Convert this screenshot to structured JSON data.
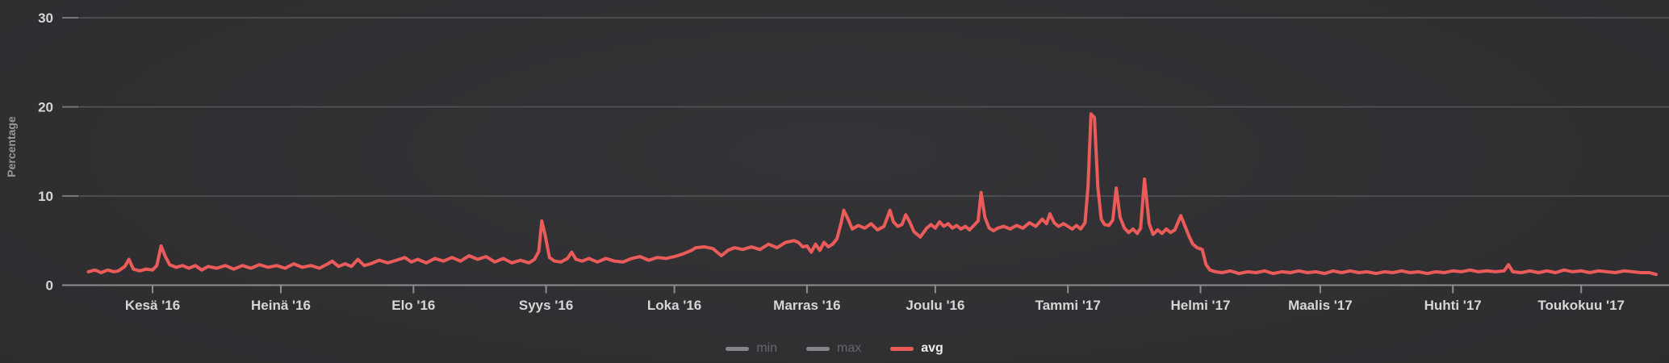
{
  "chart_data": {
    "type": "line",
    "title": "",
    "xlabel": "",
    "ylabel": "Percentage",
    "ylim": [
      0,
      32
    ],
    "grid": true,
    "legend_position": "bottom-center",
    "y_ticks": [
      {
        "value": 0,
        "label": "0"
      },
      {
        "value": 10,
        "label": "10"
      },
      {
        "value": 20,
        "label": "20"
      },
      {
        "value": 30,
        "label": "30"
      }
    ],
    "x_unit": "days since 2016-06-01",
    "x_ticks": [
      {
        "label": "Kesä '16",
        "day": 0
      },
      {
        "label": "Heinä '16",
        "day": 30
      },
      {
        "label": "Elo '16",
        "day": 61
      },
      {
        "label": "Syys '16",
        "day": 92
      },
      {
        "label": "Loka '16",
        "day": 122
      },
      {
        "label": "Marras '16",
        "day": 153
      },
      {
        "label": "Joulu '16",
        "day": 183
      },
      {
        "label": "Tammi '17",
        "day": 214
      },
      {
        "label": "Helmi '17",
        "day": 245
      },
      {
        "label": "Maalis '17",
        "day": 273
      },
      {
        "label": "Huhti '17",
        "day": 304
      },
      {
        "label": "Toukokuu '17",
        "day": 334
      }
    ],
    "legend": [
      {
        "label": "min",
        "swatch_color": "#85868a",
        "text_color": "#63666b",
        "active": false
      },
      {
        "label": "max",
        "swatch_color": "#85868a",
        "text_color": "#63666b",
        "active": false
      },
      {
        "label": "avg",
        "swatch_color": "#ea5b59",
        "text_color": "#ededee",
        "active": true
      }
    ],
    "series": [
      {
        "name": "avg",
        "color": "#ea5b59",
        "points": [
          [
            -15,
            1.5
          ],
          [
            -13.5,
            1.7
          ],
          [
            -12,
            1.4
          ],
          [
            -10.5,
            1.7
          ],
          [
            -9,
            1.5
          ],
          [
            -8,
            1.6
          ],
          [
            -6.5,
            2.1
          ],
          [
            -5.5,
            2.9
          ],
          [
            -4.5,
            1.8
          ],
          [
            -3,
            1.6
          ],
          [
            -1.5,
            1.8
          ],
          [
            0,
            1.7
          ],
          [
            1,
            2.2
          ],
          [
            2,
            4.4
          ],
          [
            3,
            3.2
          ],
          [
            4,
            2.3
          ],
          [
            5.5,
            2.0
          ],
          [
            7,
            2.2
          ],
          [
            8.5,
            1.9
          ],
          [
            10,
            2.2
          ],
          [
            11.5,
            1.7
          ],
          [
            13,
            2.1
          ],
          [
            15,
            1.9
          ],
          [
            17,
            2.2
          ],
          [
            19,
            1.8
          ],
          [
            21,
            2.2
          ],
          [
            23,
            1.9
          ],
          [
            25,
            2.3
          ],
          [
            27,
            2.0
          ],
          [
            29,
            2.2
          ],
          [
            31,
            1.9
          ],
          [
            33,
            2.4
          ],
          [
            35,
            2.0
          ],
          [
            37,
            2.2
          ],
          [
            39,
            1.9
          ],
          [
            41,
            2.4
          ],
          [
            42,
            2.7
          ],
          [
            43.5,
            2.1
          ],
          [
            45,
            2.4
          ],
          [
            46.5,
            2.1
          ],
          [
            48,
            2.9
          ],
          [
            49.5,
            2.2
          ],
          [
            51,
            2.4
          ],
          [
            53,
            2.8
          ],
          [
            55,
            2.5
          ],
          [
            57,
            2.8
          ],
          [
            59,
            3.1
          ],
          [
            60.5,
            2.6
          ],
          [
            62,
            2.9
          ],
          [
            64,
            2.5
          ],
          [
            66,
            3.0
          ],
          [
            68,
            2.7
          ],
          [
            70,
            3.1
          ],
          [
            72,
            2.7
          ],
          [
            74,
            3.3
          ],
          [
            76,
            2.9
          ],
          [
            78,
            3.2
          ],
          [
            80,
            2.6
          ],
          [
            82,
            3.0
          ],
          [
            84,
            2.5
          ],
          [
            86,
            2.8
          ],
          [
            88,
            2.5
          ],
          [
            89.3,
            2.9
          ],
          [
            90.3,
            3.8
          ],
          [
            91,
            7.2
          ],
          [
            91.8,
            5.6
          ],
          [
            92.8,
            3.1
          ],
          [
            94,
            2.7
          ],
          [
            95.5,
            2.6
          ],
          [
            97,
            3.0
          ],
          [
            98,
            3.7
          ],
          [
            99,
            2.9
          ],
          [
            100.5,
            2.7
          ],
          [
            102,
            3.0
          ],
          [
            104,
            2.6
          ],
          [
            106,
            3.0
          ],
          [
            108,
            2.7
          ],
          [
            110,
            2.6
          ],
          [
            112,
            3.0
          ],
          [
            114,
            3.2
          ],
          [
            116,
            2.8
          ],
          [
            118,
            3.1
          ],
          [
            120,
            3.0
          ],
          [
            122,
            3.2
          ],
          [
            124,
            3.5
          ],
          [
            126,
            3.9
          ],
          [
            127,
            4.2
          ],
          [
            129,
            4.3
          ],
          [
            131,
            4.1
          ],
          [
            133,
            3.3
          ],
          [
            134.5,
            3.9
          ],
          [
            136,
            4.2
          ],
          [
            138,
            4.0
          ],
          [
            140,
            4.3
          ],
          [
            142,
            4.0
          ],
          [
            144,
            4.6
          ],
          [
            146,
            4.2
          ],
          [
            148,
            4.8
          ],
          [
            150,
            5.0
          ],
          [
            151,
            4.8
          ],
          [
            152,
            4.3
          ],
          [
            153,
            4.4
          ],
          [
            154,
            3.7
          ],
          [
            155,
            4.6
          ],
          [
            156,
            3.9
          ],
          [
            157,
            4.8
          ],
          [
            158,
            4.3
          ],
          [
            159,
            4.6
          ],
          [
            160,
            5.2
          ],
          [
            161,
            7.0
          ],
          [
            161.6,
            8.4
          ],
          [
            162.6,
            7.4
          ],
          [
            163.6,
            6.3
          ],
          [
            165,
            6.7
          ],
          [
            166.5,
            6.4
          ],
          [
            168,
            6.9
          ],
          [
            169.5,
            6.2
          ],
          [
            171,
            6.6
          ],
          [
            171.8,
            7.6
          ],
          [
            172.4,
            8.4
          ],
          [
            173.2,
            7.1
          ],
          [
            174.2,
            6.6
          ],
          [
            175.2,
            6.8
          ],
          [
            176.1,
            7.9
          ],
          [
            177,
            7.1
          ],
          [
            178,
            6.0
          ],
          [
            179.5,
            5.4
          ],
          [
            181,
            6.4
          ],
          [
            182,
            6.8
          ],
          [
            183,
            6.4
          ],
          [
            184,
            7.1
          ],
          [
            185,
            6.6
          ],
          [
            186,
            6.9
          ],
          [
            187,
            6.4
          ],
          [
            188,
            6.7
          ],
          [
            189,
            6.3
          ],
          [
            190,
            6.6
          ],
          [
            191,
            6.2
          ],
          [
            192,
            6.7
          ],
          [
            193,
            7.2
          ],
          [
            193.7,
            10.4
          ],
          [
            194.6,
            7.6
          ],
          [
            195.6,
            6.4
          ],
          [
            196.6,
            6.1
          ],
          [
            197.6,
            6.4
          ],
          [
            199,
            6.6
          ],
          [
            200.5,
            6.3
          ],
          [
            202,
            6.7
          ],
          [
            203.5,
            6.4
          ],
          [
            205,
            7.0
          ],
          [
            206.5,
            6.6
          ],
          [
            208,
            7.4
          ],
          [
            209,
            6.9
          ],
          [
            209.8,
            8.0
          ],
          [
            210.8,
            7.0
          ],
          [
            211.8,
            6.6
          ],
          [
            213,
            6.9
          ],
          [
            214,
            6.6
          ],
          [
            215,
            6.3
          ],
          [
            216,
            6.7
          ],
          [
            217,
            6.3
          ],
          [
            218,
            7.0
          ],
          [
            218.7,
            11.0
          ],
          [
            219.4,
            19.2
          ],
          [
            220.2,
            18.8
          ],
          [
            221,
            11.0
          ],
          [
            221.8,
            7.4
          ],
          [
            222.6,
            6.8
          ],
          [
            223.6,
            6.7
          ],
          [
            224.5,
            7.3
          ],
          [
            225.3,
            10.9
          ],
          [
            226.2,
            7.6
          ],
          [
            227.2,
            6.4
          ],
          [
            228.2,
            5.9
          ],
          [
            229.2,
            6.3
          ],
          [
            230.2,
            5.8
          ],
          [
            231,
            6.4
          ],
          [
            231.9,
            11.9
          ],
          [
            233,
            6.9
          ],
          [
            233.9,
            5.7
          ],
          [
            235,
            6.2
          ],
          [
            236,
            5.8
          ],
          [
            237,
            6.3
          ],
          [
            238,
            5.9
          ],
          [
            239,
            6.2
          ],
          [
            240.4,
            7.8
          ],
          [
            241.4,
            6.6
          ],
          [
            242.3,
            5.5
          ],
          [
            243.2,
            4.6
          ],
          [
            244.2,
            4.2
          ],
          [
            245.4,
            4.0
          ],
          [
            246.3,
            2.3
          ],
          [
            247.2,
            1.7
          ],
          [
            248.5,
            1.5
          ],
          [
            250,
            1.4
          ],
          [
            252,
            1.6
          ],
          [
            254,
            1.3
          ],
          [
            256,
            1.5
          ],
          [
            258,
            1.4
          ],
          [
            260,
            1.6
          ],
          [
            262,
            1.3
          ],
          [
            264,
            1.5
          ],
          [
            266,
            1.4
          ],
          [
            268,
            1.6
          ],
          [
            270,
            1.4
          ],
          [
            272,
            1.5
          ],
          [
            274,
            1.3
          ],
          [
            276,
            1.6
          ],
          [
            278,
            1.4
          ],
          [
            280,
            1.6
          ],
          [
            282,
            1.4
          ],
          [
            284,
            1.5
          ],
          [
            286,
            1.3
          ],
          [
            288,
            1.5
          ],
          [
            290,
            1.4
          ],
          [
            292,
            1.6
          ],
          [
            294,
            1.4
          ],
          [
            296,
            1.5
          ],
          [
            298,
            1.3
          ],
          [
            300,
            1.5
          ],
          [
            302,
            1.4
          ],
          [
            304,
            1.6
          ],
          [
            306,
            1.5
          ],
          [
            308,
            1.7
          ],
          [
            310,
            1.5
          ],
          [
            312,
            1.6
          ],
          [
            314,
            1.5
          ],
          [
            316,
            1.6
          ],
          [
            317,
            2.3
          ],
          [
            318,
            1.5
          ],
          [
            320,
            1.4
          ],
          [
            322,
            1.6
          ],
          [
            324,
            1.4
          ],
          [
            326,
            1.6
          ],
          [
            328,
            1.4
          ],
          [
            330,
            1.7
          ],
          [
            332,
            1.5
          ],
          [
            334,
            1.6
          ],
          [
            336,
            1.4
          ],
          [
            338,
            1.6
          ],
          [
            340,
            1.5
          ],
          [
            342,
            1.4
          ],
          [
            344,
            1.6
          ],
          [
            346,
            1.5
          ],
          [
            348,
            1.4
          ],
          [
            350,
            1.4
          ],
          [
            351.5,
            1.2
          ]
        ]
      }
    ]
  },
  "colors": {
    "background_center": "#343438",
    "background_edge": "#27272a",
    "gridline": "#55555a",
    "axis_line": "#8d8d90",
    "axis_stub": "#77777b",
    "tick_label_color": "#d6d6d8",
    "axis_title_color": "#98989c",
    "avg_line": "#ea5b59"
  }
}
